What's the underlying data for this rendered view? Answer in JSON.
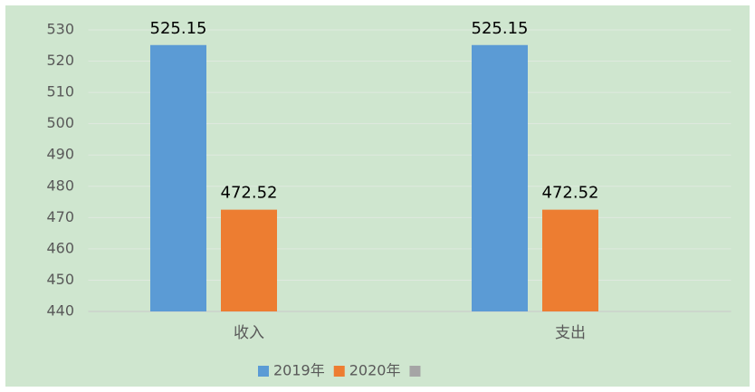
{
  "chart_data": {
    "type": "bar",
    "categories": [
      "收入",
      "支出"
    ],
    "series": [
      {
        "name": "2019年",
        "color": "#5b9bd5",
        "values": [
          525.15,
          525.15
        ]
      },
      {
        "name": "2020年",
        "color": "#ed7d31",
        "values": [
          472.52,
          472.52
        ]
      },
      {
        "color": "#a5a5a5",
        "values": [
          null,
          null
        ]
      }
    ],
    "ylim": [
      440,
      530
    ],
    "yticks": [
      440,
      450,
      460,
      470,
      480,
      490,
      500,
      510,
      520,
      530
    ],
    "grid": true
  }
}
